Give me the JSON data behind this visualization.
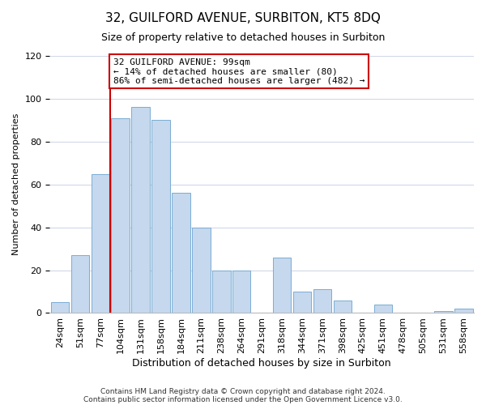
{
  "title": "32, GUILFORD AVENUE, SURBITON, KT5 8DQ",
  "subtitle": "Size of property relative to detached houses in Surbiton",
  "xlabel": "Distribution of detached houses by size in Surbiton",
  "ylabel": "Number of detached properties",
  "bar_labels": [
    "24sqm",
    "51sqm",
    "77sqm",
    "104sqm",
    "131sqm",
    "158sqm",
    "184sqm",
    "211sqm",
    "238sqm",
    "264sqm",
    "291sqm",
    "318sqm",
    "344sqm",
    "371sqm",
    "398sqm",
    "425sqm",
    "451sqm",
    "478sqm",
    "505sqm",
    "531sqm",
    "558sqm"
  ],
  "bar_values": [
    5,
    27,
    65,
    91,
    96,
    90,
    56,
    40,
    20,
    20,
    0,
    26,
    10,
    11,
    6,
    0,
    4,
    0,
    0,
    1,
    2
  ],
  "bar_color": "#c5d8ed",
  "bar_edge_color": "#7aadd4",
  "property_line_index": 3,
  "annotation_title": "32 GUILFORD AVENUE: 99sqm",
  "annotation_line1": "← 14% of detached houses are smaller (80)",
  "annotation_line2": "86% of semi-detached houses are larger (482) →",
  "annotation_box_facecolor": "#ffffff",
  "annotation_box_edgecolor": "#cc0000",
  "vline_color": "#cc0000",
  "ylim": [
    0,
    120
  ],
  "yticks": [
    0,
    20,
    40,
    60,
    80,
    100,
    120
  ],
  "footnote1": "Contains HM Land Registry data © Crown copyright and database right 2024.",
  "footnote2": "Contains public sector information licensed under the Open Government Licence v3.0.",
  "background_color": "#ffffff",
  "plot_background": "#ffffff",
  "grid_color": "#d0d8e8",
  "title_fontsize": 11,
  "subtitle_fontsize": 9,
  "ylabel_fontsize": 8,
  "xlabel_fontsize": 9,
  "tick_fontsize": 8,
  "annotation_fontsize": 8,
  "footnote_fontsize": 6.5
}
